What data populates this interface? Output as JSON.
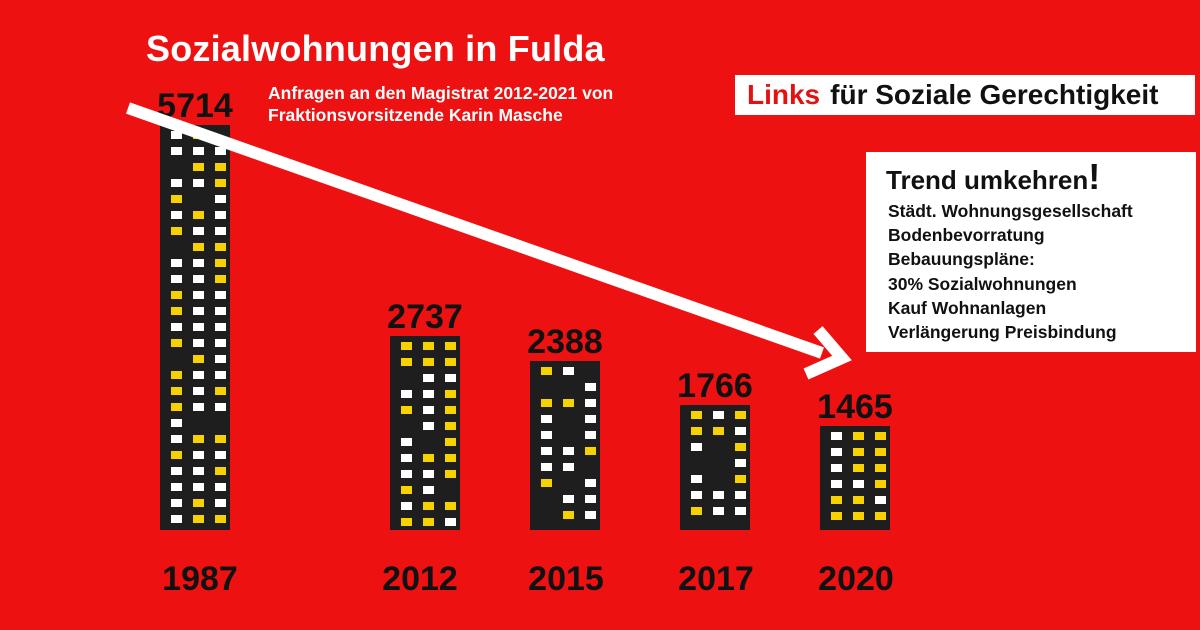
{
  "chart_data": {
    "type": "bar",
    "title": "Sozialwohnungen in Fulda",
    "subtitle_lines": [
      "Anfragen an den Magistrat 2012-2021 von",
      "Fraktionsvorsitzende Karin Masche"
    ],
    "categories": [
      "1987",
      "2012",
      "2015",
      "2017",
      "2020"
    ],
    "values": [
      5714,
      2737,
      2388,
      1766,
      1465
    ],
    "data_labels": [
      "5714",
      "2737",
      "2388",
      "1766",
      "1465"
    ],
    "xlabel": "",
    "ylabel": "",
    "ylim": [
      0,
      5714
    ],
    "grid": false,
    "legend": "none",
    "trend": "decreasing"
  },
  "brand": {
    "highlight": "Links",
    "rest": "für Soziale Gerechtigkeit"
  },
  "trend_box": {
    "heading": "Trend umkehren",
    "heading_mark": "!",
    "items": [
      "Städt. Wohnungsgesellschaft",
      "Bodenbevorratung",
      "Bebauungspläne:",
      "30% Sozialwohnungen",
      "Kauf Wohnanlagen",
      "Verlängerung Preisbindung"
    ]
  },
  "colors": {
    "background": "#ee1111",
    "building": "#1e1e1e",
    "window_lit": "#f6d300",
    "window_white": "#ffffff",
    "arrow": "#ffffff",
    "brand_red": "#e31212",
    "text_dark": "#111111"
  }
}
